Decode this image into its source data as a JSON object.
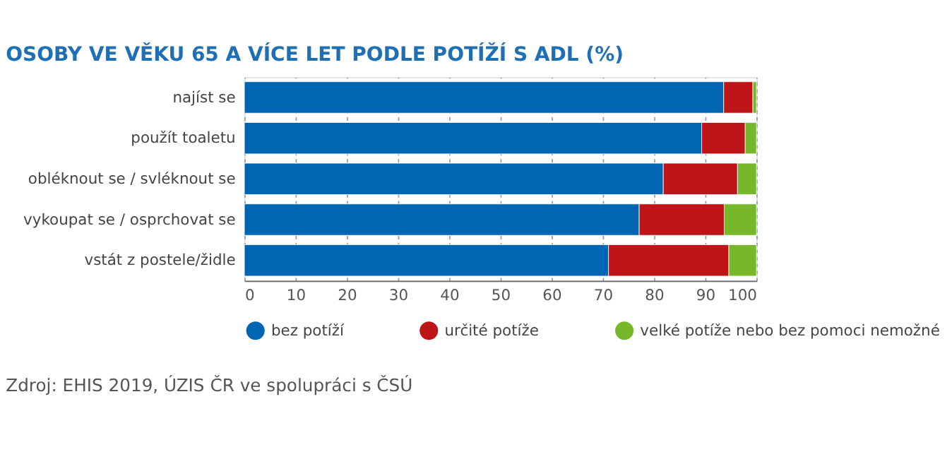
{
  "chart_data": {
    "type": "bar",
    "orientation": "horizontal",
    "stacked": true,
    "title": "OSOBY VE VĚKU 65 A VÍCE LET PODLE POTÍŽÍ S ADL (%)",
    "categories": [
      "najíst se",
      "použít toaletu",
      "obléknout se / svléknout se",
      "vykoupat se / osprchovat se",
      "vstát z postele/židle"
    ],
    "series": [
      {
        "name": "bez potíží",
        "color": "#0066b3",
        "values": [
          93.6,
          89.3,
          81.8,
          77.1,
          71.1
        ]
      },
      {
        "name": "určité potíže",
        "color": "#be1518",
        "values": [
          5.7,
          8.5,
          14.5,
          16.6,
          23.5
        ]
      },
      {
        "name": "velké potíže nebo bez pomoci nemožné",
        "color": "#76b82a",
        "values": [
          0.7,
          2.2,
          3.7,
          6.3,
          5.4
        ]
      }
    ],
    "xlim": [
      0,
      100
    ],
    "xticks": [
      0,
      10,
      20,
      30,
      40,
      50,
      60,
      70,
      80,
      90,
      100
    ],
    "grid": "x",
    "legend": "bottom",
    "annotations": [
      "Zdroj: EHIS 2019, ÚZIS ČR ve spolupráci s ČSÚ"
    ]
  }
}
